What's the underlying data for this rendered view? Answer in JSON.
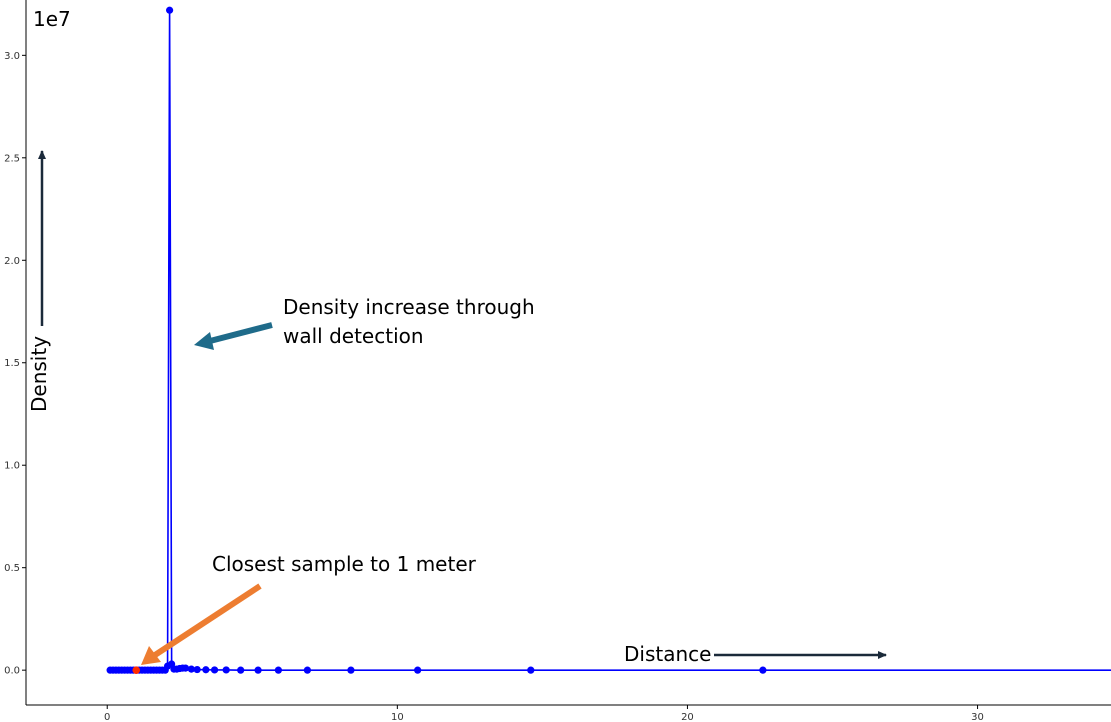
{
  "chart_data": {
    "type": "line",
    "title": "",
    "xlabel": "Distance",
    "ylabel": "Density",
    "y_multiplier_label": "1e7",
    "xlim": [
      -2.8,
      34.6
    ],
    "ylim": [
      -0.17,
      3.27
    ],
    "x_ticks": [
      0,
      10,
      20,
      30
    ],
    "x_tick_labels": [
      "0",
      "10",
      "20",
      "30"
    ],
    "y_ticks": [
      0.0,
      0.5,
      1.0,
      1.5,
      2.0,
      2.5,
      3.0
    ],
    "y_tick_labels": [
      "0.0",
      "0.5",
      "1.0",
      "1.5",
      "2.0",
      "2.5",
      "3.0"
    ],
    "grid": false,
    "series": [
      {
        "color": "#0000ff",
        "x": [
          0.1,
          0.2,
          0.3,
          0.4,
          0.5,
          0.6,
          0.7,
          0.8,
          0.9,
          1.0,
          1.1,
          1.2,
          1.3,
          1.4,
          1.5,
          1.6,
          1.7,
          1.8,
          1.9,
          2.0,
          2.08,
          2.15,
          2.22,
          2.3,
          2.4,
          2.5,
          2.6,
          2.7,
          2.9,
          3.1,
          3.4,
          3.7,
          4.1,
          4.6,
          5.2,
          5.9,
          6.9,
          8.4,
          10.7,
          14.6,
          22.6,
          34.6
        ],
        "y": [
          0.0,
          0.0,
          0.0,
          0.0,
          0.0,
          0.0,
          0.0,
          0.0,
          0.0,
          0.0,
          0.0,
          0.0,
          0.0,
          0.0,
          0.0,
          0.0,
          0.0,
          0.0,
          0.0,
          0.0,
          0.02,
          3.22,
          0.03,
          0.005,
          0.005,
          0.008,
          0.01,
          0.01,
          0.005,
          0.003,
          0.002,
          0.001,
          0.001,
          0.0,
          0.0,
          0.0,
          0.0,
          0.0,
          0.0,
          0.0,
          0.0,
          0.0
        ],
        "markers": [
          true,
          true,
          true,
          true,
          true,
          true,
          true,
          true,
          true,
          true,
          true,
          true,
          true,
          true,
          true,
          true,
          true,
          true,
          true,
          true,
          true,
          true,
          true,
          true,
          true,
          true,
          true,
          true,
          true,
          true,
          true,
          true,
          true,
          true,
          true,
          true,
          true,
          true,
          true,
          true,
          true,
          false
        ]
      }
    ],
    "highlight_point": {
      "x": 1.0,
      "y": 0.0,
      "color": "#ff2a00"
    },
    "annotations": [
      {
        "id": "wall",
        "text_lines": [
          "Density increase through",
          "wall detection"
        ],
        "color": "#1f6b8a",
        "arrow_to": [
          2.55,
          1.6
        ]
      },
      {
        "id": "closest",
        "text_lines": [
          "Closest sample to 1 meter"
        ],
        "color": "#ed7d31",
        "arrow_to": [
          1.05,
          0.02
        ]
      }
    ]
  }
}
